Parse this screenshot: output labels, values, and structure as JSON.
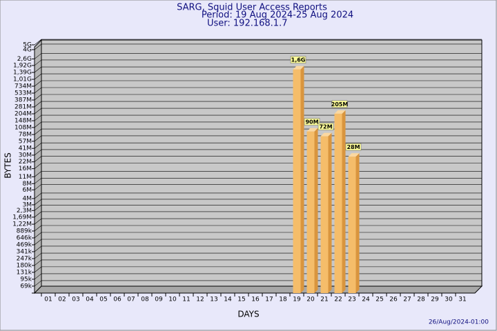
{
  "chart_data": {
    "type": "bar",
    "title": "SARG, Squid User Access Reports",
    "subtitle": [
      "Period: 19 Aug 2024-25 Aug 2024",
      "User: 192.168.1.7"
    ],
    "y_label": "BYTES",
    "x_label": "DAYS",
    "footer": "26/Aug/2024-01:00",
    "yscale": "log",
    "grid": true,
    "color": "#f5bd6a",
    "categories": [
      "01",
      "02",
      "03",
      "04",
      "05",
      "06",
      "07",
      "08",
      "09",
      "10",
      "11",
      "12",
      "13",
      "14",
      "15",
      "16",
      "17",
      "18",
      "19",
      "20",
      "21",
      "22",
      "23",
      "24",
      "25",
      "26",
      "27",
      "28",
      "29",
      "30",
      "31"
    ],
    "values": [
      null,
      null,
      null,
      null,
      null,
      null,
      null,
      null,
      null,
      null,
      null,
      null,
      null,
      null,
      null,
      null,
      null,
      null,
      1600000000,
      90000000,
      72000000,
      205000000,
      28000000,
      null,
      null,
      null,
      null,
      null,
      null,
      null,
      null
    ],
    "value_labels": [
      null,
      null,
      null,
      null,
      null,
      null,
      null,
      null,
      null,
      null,
      null,
      null,
      null,
      null,
      null,
      null,
      null,
      null,
      "1,6G",
      "90M",
      "72M",
      "205M",
      "28M",
      null,
      null,
      null,
      null,
      null,
      null,
      null,
      null
    ],
    "ylim": [
      50000,
      5000000000
    ],
    "yticks": [
      {
        "value": 5000000000,
        "label": "5G"
      },
      {
        "value": 4000000000,
        "label": "4G"
      },
      {
        "value": 2600000000,
        "label": "2,6G"
      },
      {
        "value": 1920000000,
        "label": "1,92G"
      },
      {
        "value": 1390000000,
        "label": "1,39G"
      },
      {
        "value": 1010000000,
        "label": "1,01G"
      },
      {
        "value": 734000000,
        "label": "734M"
      },
      {
        "value": 533000000,
        "label": "533M"
      },
      {
        "value": 387000000,
        "label": "387M"
      },
      {
        "value": 281000000,
        "label": "281M"
      },
      {
        "value": 204000000,
        "label": "204M"
      },
      {
        "value": 148000000,
        "label": "148M"
      },
      {
        "value": 108000000,
        "label": "108M"
      },
      {
        "value": 78000000,
        "label": "78M"
      },
      {
        "value": 57000000,
        "label": "57M"
      },
      {
        "value": 41000000,
        "label": "41M"
      },
      {
        "value": 30000000,
        "label": "30M"
      },
      {
        "value": 22000000,
        "label": "22M"
      },
      {
        "value": 16000000,
        "label": "16M"
      },
      {
        "value": 11000000,
        "label": "11M"
      },
      {
        "value": 8000000,
        "label": "8M"
      },
      {
        "value": 6000000,
        "label": "6M"
      },
      {
        "value": 4000000,
        "label": "4M"
      },
      {
        "value": 3000000,
        "label": "3M"
      },
      {
        "value": 2300000,
        "label": "2,3M"
      },
      {
        "value": 1690000,
        "label": "1,69M"
      },
      {
        "value": 1220000,
        "label": "1,22M"
      },
      {
        "value": 889000,
        "label": "889k"
      },
      {
        "value": 646000,
        "label": "646k"
      },
      {
        "value": 469000,
        "label": "469k"
      },
      {
        "value": 341000,
        "label": "341k"
      },
      {
        "value": 247000,
        "label": "247k"
      },
      {
        "value": 180000,
        "label": "180k"
      },
      {
        "value": 131000,
        "label": "131k"
      },
      {
        "value": 95000,
        "label": "95k"
      },
      {
        "value": 69000,
        "label": "69k"
      }
    ]
  }
}
